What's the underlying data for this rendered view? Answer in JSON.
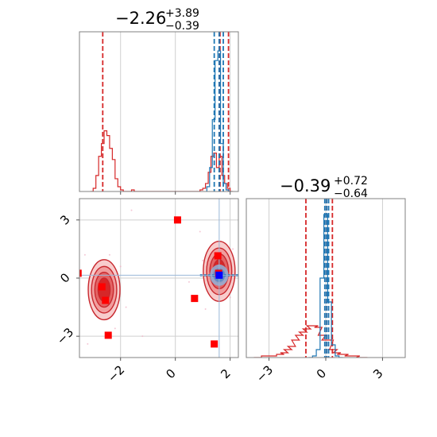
{
  "chart_data": [
    {
      "type": "histogram",
      "panel": "top-left",
      "title": {
        "main": "−2.26",
        "sup": "+3.89",
        "sub": "−0.39"
      },
      "xlim": [
        -3.5,
        2.3
      ],
      "ylim": [
        0,
        1
      ],
      "grid": true,
      "series": [
        {
          "color": "#d62728",
          "bins_x": [
            -3.05,
            -2.95,
            -2.85,
            -2.75,
            -2.65,
            -2.55,
            -2.45,
            -2.35,
            -2.25,
            -2.15,
            -2.05,
            -1.95,
            -1.85,
            -1.75,
            -1.65,
            -1.55,
            -1.45,
            -1.35,
            -1.25,
            -1.15,
            -1.05,
            -0.95,
            -0.85,
            -0.75,
            -0.65,
            -0.55,
            -0.45,
            -0.35,
            -0.25,
            -0.15,
            -0.05,
            0.05,
            0.15,
            0.25,
            0.35,
            0.45,
            0.55,
            0.65,
            0.75,
            0.85,
            0.95,
            1.05,
            1.15,
            1.25,
            1.35,
            1.45,
            1.55,
            1.65,
            1.75,
            1.85,
            1.95,
            2.05
          ],
          "bins_y": [
            0,
            0.02,
            0.1,
            0.22,
            0.3,
            0.38,
            0.35,
            0.27,
            0.2,
            0.08,
            0.03,
            0.01,
            0,
            0,
            0,
            0.01,
            0,
            0,
            0,
            0,
            0,
            0,
            0,
            0,
            0,
            0,
            0,
            0,
            0,
            0,
            0,
            0,
            0,
            0,
            0,
            0,
            0,
            0,
            0,
            0,
            0.01,
            0.02,
            0.05,
            0.12,
            0.22,
            0.24,
            0.15,
            0.22,
            0.1,
            0.05,
            0.02,
            0
          ],
          "quantiles": [
            -2.65,
            1.63,
            1.94
          ]
        },
        {
          "color": "#1f77b4",
          "bins_x": [
            1.2,
            1.3,
            1.4,
            1.5,
            1.6,
            1.7,
            1.8,
            1.9,
            2.0
          ],
          "bins_y": [
            0.03,
            0.15,
            0.45,
            0.82,
            0.88,
            0.3,
            0.05,
            0.01,
            0
          ],
          "quantiles": [
            1.42,
            1.6,
            1.75
          ]
        }
      ]
    },
    {
      "type": "scatter",
      "panel": "bottom-left",
      "xlim": [
        -3.5,
        2.3
      ],
      "ylim": [
        -4.1,
        4.1
      ],
      "xticks": [
        "−2",
        "0",
        "2"
      ],
      "yticks": [
        "−3",
        "0",
        "3"
      ],
      "grid": true,
      "red_markers": [
        [
          -3.55,
          0.25
        ],
        [
          -2.68,
          -0.45
        ],
        [
          -2.55,
          -1.15
        ],
        [
          -2.45,
          -2.95
        ],
        [
          0.08,
          3.0
        ],
        [
          0.7,
          -1.05
        ],
        [
          1.42,
          -3.4
        ],
        [
          1.55,
          1.15
        ],
        [
          1.58,
          0.25
        ]
      ],
      "blue_marker": [
        1.6,
        0.15
      ],
      "red_contour_centers": [
        [
          -2.6,
          -0.6
        ],
        [
          1.6,
          0.35
        ]
      ],
      "blue_contour_center": [
        1.6,
        0.15
      ],
      "truth_line_x": 1.6,
      "truth_line_y": 0.15
    },
    {
      "type": "histogram",
      "panel": "bottom-right",
      "title": {
        "main": "−0.39",
        "sup": "+0.72",
        "sub": "−0.64"
      },
      "xlim": [
        -4.2,
        4.2
      ],
      "ylim": [
        0,
        1
      ],
      "xticks": [
        "−3",
        "0",
        "3"
      ],
      "grid": true,
      "series": [
        {
          "color": "#d62728",
          "bins_x": [
            -3.6,
            -3.2,
            -2.8,
            -2.4,
            -2.2,
            -2.0,
            -1.8,
            -1.6,
            -1.4,
            -1.2,
            -1.0,
            -0.8,
            -0.6,
            -0.4,
            -0.2,
            0.0,
            0.2,
            0.4,
            0.6,
            0.8,
            1.0,
            1.2,
            1.4,
            1.6,
            1.8,
            2.0
          ],
          "bins_y": [
            0,
            0.01,
            0.01,
            0.02,
            0.03,
            0.05,
            0.07,
            0.11,
            0.14,
            0.16,
            0.18,
            0.2,
            0.2,
            0.19,
            0.14,
            0.11,
            0.11,
            0.05,
            0.03,
            0.02,
            0.02,
            0.01,
            0.01,
            0.01,
            0,
            0
          ],
          "quantiles": [
            -1.05,
            0.05,
            0.35
          ]
        },
        {
          "color": "#1f77b4",
          "bins_x": [
            -0.8,
            -0.6,
            -0.4,
            -0.2,
            0.0,
            0.2,
            0.4,
            0.6,
            0.8
          ],
          "bins_y": [
            0,
            0.01,
            0.05,
            0.5,
            0.9,
            0.35,
            0.08,
            0.01,
            0
          ],
          "quantiles": [
            -0.05,
            0.05,
            0.15
          ]
        }
      ]
    }
  ]
}
